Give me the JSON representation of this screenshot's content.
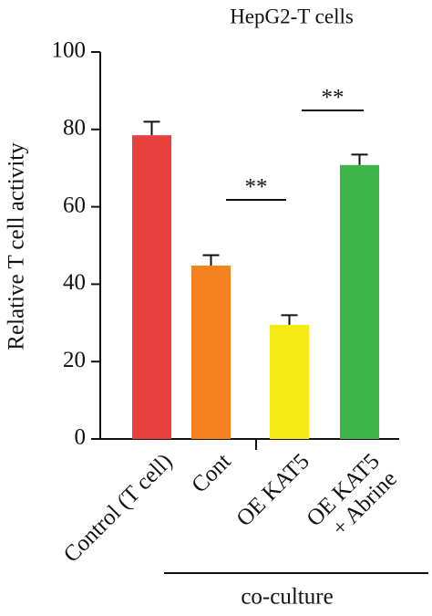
{
  "chart_data": {
    "type": "bar",
    "title": "HepG2-T cells",
    "y_label": "Relative T cell activity",
    "categories": [
      "Control (T cell)",
      "Cont",
      "OE KAT5",
      "OE KAT5\n+ Abrine"
    ],
    "values": [
      78.5,
      44.8,
      29.5,
      70.8
    ],
    "errors": [
      3.5,
      2.7,
      2.5,
      2.7
    ],
    "colors": [
      "#e8403f",
      "#f5821f",
      "#f4ea14",
      "#3db54a"
    ],
    "ylim": [
      0,
      100
    ],
    "yticks": [
      0,
      20,
      40,
      60,
      80,
      100
    ],
    "grid": false,
    "annotations": [
      "**",
      "**"
    ],
    "group_label": "co-culture"
  }
}
